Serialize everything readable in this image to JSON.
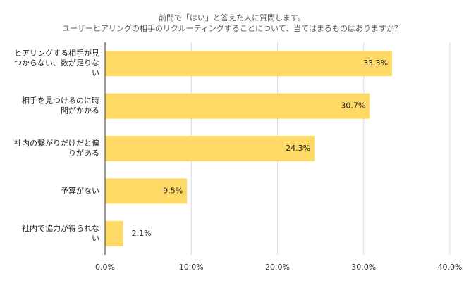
{
  "chart_data": {
    "type": "bar",
    "orientation": "horizontal",
    "title": [
      "前問で「はい」と答えた人に質問します。",
      "ユーザーヒアリングの相手のリクルーティングすることについて、当てはまるものはありますか？"
    ],
    "categories": [
      [
        "ヒアリングする相手が見",
        "つからない、数が足りな",
        "い"
      ],
      [
        "相手を見つけるのに時",
        "間がかかる"
      ],
      [
        "社内の繋がりだけだと偏",
        "りがある"
      ],
      [
        "予算がない"
      ],
      [
        "社内で協力が得られな",
        "い"
      ]
    ],
    "values": [
      33.3,
      30.7,
      24.3,
      9.5,
      2.1
    ],
    "value_labels": [
      "33.3%",
      "30.7%",
      "24.3%",
      "9.5%",
      "2.1%"
    ],
    "xticks": [
      "0.0%",
      "10.0%",
      "20.0%",
      "30.0%",
      "40.0%"
    ],
    "xlim": [
      0,
      40
    ],
    "grid": true,
    "bar_color": "#ffd966"
  }
}
